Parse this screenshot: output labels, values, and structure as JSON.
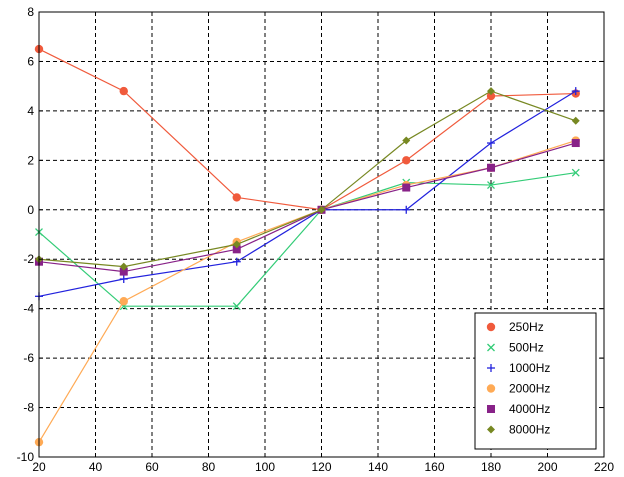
{
  "chart_data": {
    "type": "line",
    "title": "",
    "xlabel": "",
    "ylabel": "",
    "xlim": [
      20,
      220
    ],
    "ylim": [
      -10,
      8
    ],
    "xticks": [
      20,
      40,
      60,
      80,
      100,
      120,
      140,
      160,
      180,
      200,
      220
    ],
    "yticks": [
      -10,
      -8,
      -6,
      -4,
      -2,
      0,
      2,
      4,
      6,
      8
    ],
    "grid": true,
    "legend_position": "bottom-right",
    "x": [
      20,
      50,
      90,
      120,
      150,
      180,
      210
    ],
    "series": [
      {
        "name": "250Hz",
        "color": "#f05a3c",
        "marker": "circle",
        "values": [
          6.5,
          4.8,
          0.5,
          0,
          2.0,
          4.6,
          4.7
        ]
      },
      {
        "name": "500Hz",
        "color": "#33cc77",
        "marker": "x",
        "values": [
          -0.9,
          -3.9,
          -3.9,
          0,
          1.1,
          1.0,
          1.5
        ]
      },
      {
        "name": "1000Hz",
        "color": "#2222dd",
        "marker": "plus",
        "values": [
          -3.5,
          -2.8,
          -2.1,
          0,
          0,
          2.7,
          4.8
        ]
      },
      {
        "name": "2000Hz",
        "color": "#ffaa55",
        "marker": "circle",
        "values": [
          -9.4,
          -3.7,
          -1.3,
          0,
          1.0,
          1.7,
          2.8
        ]
      },
      {
        "name": "4000Hz",
        "color": "#882288",
        "marker": "square",
        "values": [
          -2.1,
          -2.5,
          -1.6,
          0,
          0.9,
          1.7,
          2.7
        ]
      },
      {
        "name": "8000Hz",
        "color": "#778822",
        "marker": "diamond",
        "values": [
          -2.0,
          -2.3,
          -1.4,
          0,
          2.8,
          4.8,
          3.6
        ]
      }
    ]
  }
}
